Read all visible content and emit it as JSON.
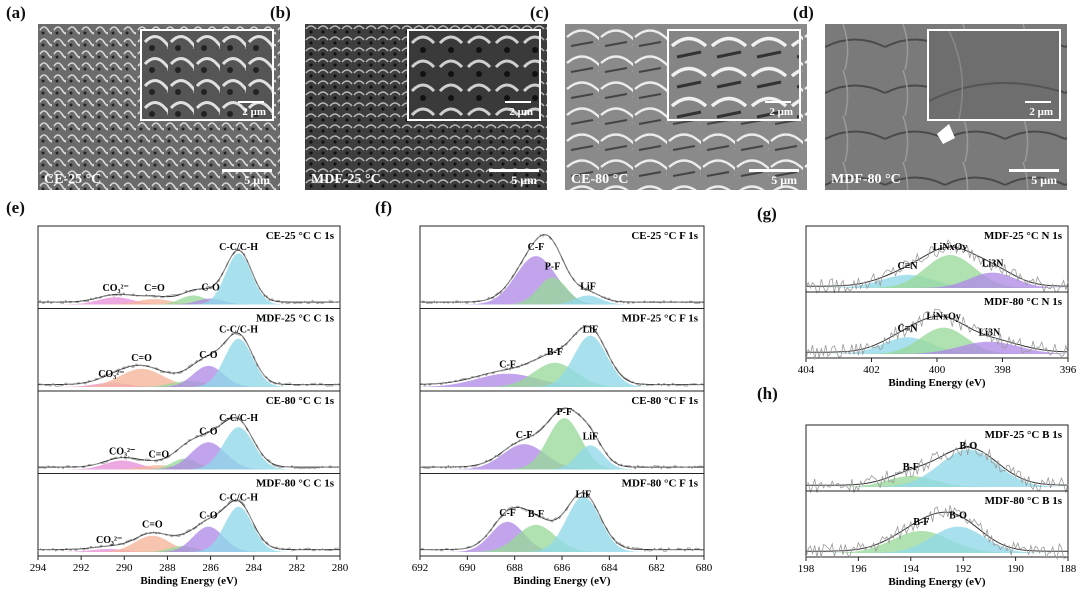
{
  "sem_panels": [
    {
      "label": "(a)",
      "condition": "CE-25 °C",
      "main_scale": "5 μm",
      "inset_scale": "2 μm",
      "tone": "#6b6b6b"
    },
    {
      "label": "(b)",
      "condition": "MDF-25 °C",
      "main_scale": "5 μm",
      "inset_scale": "2 μm",
      "tone": "#4a4a4a"
    },
    {
      "label": "(c)",
      "condition": "CE-80 °C",
      "main_scale": "5 μm",
      "inset_scale": "2 μm",
      "tone": "#8a8a8a"
    },
    {
      "label": "(d)",
      "condition": "MDF-80 °C",
      "main_scale": "5 μm",
      "inset_scale": "2 μm",
      "tone": "#7d7d7d"
    }
  ],
  "labels": {
    "e": "(e)",
    "f": "(f)",
    "g": "(g)",
    "h": "(h)"
  },
  "chart_data": [
    {
      "panel": "(e)",
      "type": "line",
      "xlabel": "Binding Energy (eV)",
      "xlim": [
        294,
        280
      ],
      "xticks": [
        294,
        292,
        290,
        288,
        286,
        284,
        282,
        280
      ],
      "subplots": [
        {
          "title": "CE-25 °C  C 1s",
          "components": [
            {
              "name": "CO₃²⁻",
              "center": 290.4,
              "height": 0.12,
              "width": 0.8,
              "color": "#e58fd8"
            },
            {
              "name": "C=O",
              "center": 288.6,
              "height": 0.09,
              "width": 0.8,
              "color": "#f5b39a"
            },
            {
              "name": "",
              "center": 286.8,
              "height": 0.15,
              "width": 0.6,
              "color": "#9ad99a"
            },
            {
              "name": "C-O",
              "center": 286.0,
              "height": 0.1,
              "width": 0.6,
              "color": "#b08be6"
            },
            {
              "name": "C-C/C-H",
              "center": 284.7,
              "height": 0.85,
              "width": 0.6,
              "color": "#8fd8e8"
            }
          ],
          "annotations": [
            "CO₃²⁻",
            "C=O",
            "C-O",
            "C-C/C-H"
          ]
        },
        {
          "title": "MDF-25 °C  C 1s",
          "components": [
            {
              "name": "CO₃²⁻",
              "center": 290.6,
              "height": 0.07,
              "width": 0.8,
              "color": "#e58fd8"
            },
            {
              "name": "C=O",
              "center": 289.2,
              "height": 0.3,
              "width": 1.0,
              "color": "#f5b39a"
            },
            {
              "name": "",
              "center": 287.0,
              "height": 0.1,
              "width": 0.8,
              "color": "#9ad99a"
            },
            {
              "name": "C-O",
              "center": 286.1,
              "height": 0.35,
              "width": 0.7,
              "color": "#b08be6"
            },
            {
              "name": "C-C/C-H",
              "center": 284.7,
              "height": 0.8,
              "width": 0.65,
              "color": "#8fd8e8"
            }
          ],
          "annotations": [
            "CO₃²⁻",
            "C=O",
            "C-O",
            "C-C/C-H"
          ]
        },
        {
          "title": "CE-80 °C  C 1s",
          "components": [
            {
              "name": "CO₃²⁻",
              "center": 290.1,
              "height": 0.15,
              "width": 0.8,
              "color": "#e58fd8"
            },
            {
              "name": "C=O",
              "center": 288.4,
              "height": 0.07,
              "width": 0.8,
              "color": "#f5b39a"
            },
            {
              "name": "",
              "center": 287.2,
              "height": 0.18,
              "width": 0.6,
              "color": "#9ad99a"
            },
            {
              "name": "C-O",
              "center": 286.1,
              "height": 0.45,
              "width": 0.8,
              "color": "#b08be6"
            },
            {
              "name": "C-C/C-H",
              "center": 284.7,
              "height": 0.7,
              "width": 0.7,
              "color": "#8fd8e8"
            }
          ],
          "annotations": [
            "CO₃²⁻",
            "C=O",
            "C-O",
            "C-C/C-H"
          ]
        },
        {
          "title": "MDF-80 °C  C 1s",
          "components": [
            {
              "name": "CO₃²⁻",
              "center": 290.7,
              "height": 0.05,
              "width": 0.8,
              "color": "#e58fd8"
            },
            {
              "name": "C=O",
              "center": 288.7,
              "height": 0.27,
              "width": 0.8,
              "color": "#f5b39a"
            },
            {
              "name": "",
              "center": 287.3,
              "height": 0.1,
              "width": 0.6,
              "color": "#9ad99a"
            },
            {
              "name": "C-O",
              "center": 286.1,
              "height": 0.42,
              "width": 0.7,
              "color": "#b08be6"
            },
            {
              "name": "C-C/C-H",
              "center": 284.7,
              "height": 0.75,
              "width": 0.65,
              "color": "#8fd8e8"
            }
          ],
          "annotations": [
            "CO₃²⁻",
            "C=O",
            "C-O",
            "C-C/C-H"
          ]
        }
      ]
    },
    {
      "panel": "(f)",
      "type": "line",
      "xlabel": "Binding Energy (eV)",
      "xlim": [
        692,
        680
      ],
      "xticks": [
        692,
        690,
        688,
        686,
        684,
        682,
        680
      ],
      "subplots": [
        {
          "title": "CE-25 °C  F 1s",
          "components": [
            {
              "name": "C-F",
              "center": 687.1,
              "height": 0.8,
              "width": 0.85,
              "color": "#b08be6"
            },
            {
              "name": "P-F",
              "center": 686.4,
              "height": 0.45,
              "width": 0.6,
              "color": "#9ad99a"
            },
            {
              "name": "LiF",
              "center": 684.9,
              "height": 0.15,
              "width": 0.55,
              "color": "#8fd8e8"
            }
          ],
          "annotations": [
            "C-F",
            "P-F",
            "LiF"
          ]
        },
        {
          "title": "MDF-25 °C  F 1s",
          "components": [
            {
              "name": "C-F",
              "center": 688.3,
              "height": 0.22,
              "width": 1.3,
              "color": "#b08be6"
            },
            {
              "name": "B-F",
              "center": 686.3,
              "height": 0.4,
              "width": 0.9,
              "color": "#9ad99a"
            },
            {
              "name": "LiF",
              "center": 684.8,
              "height": 0.85,
              "width": 0.7,
              "color": "#8fd8e8"
            }
          ],
          "annotations": [
            "C-F",
            "B-F",
            "LiF"
          ]
        },
        {
          "title": "CE-80 °C  F 1s",
          "components": [
            {
              "name": "C-F",
              "center": 687.6,
              "height": 0.42,
              "width": 0.9,
              "color": "#b08be6"
            },
            {
              "name": "P-F",
              "center": 685.9,
              "height": 0.85,
              "width": 0.7,
              "color": "#9ad99a"
            },
            {
              "name": "LiF",
              "center": 684.8,
              "height": 0.4,
              "width": 0.55,
              "color": "#8fd8e8"
            }
          ],
          "annotations": [
            "C-F",
            "P-F",
            "LiF"
          ]
        },
        {
          "title": "MDF-80 °C  F 1s",
          "components": [
            {
              "name": "C-F",
              "center": 688.3,
              "height": 0.5,
              "width": 0.7,
              "color": "#b08be6"
            },
            {
              "name": "B-F",
              "center": 687.1,
              "height": 0.45,
              "width": 0.8,
              "color": "#9ad99a"
            },
            {
              "name": "LiF",
              "center": 685.1,
              "height": 0.92,
              "width": 0.7,
              "color": "#8fd8e8"
            }
          ],
          "annotations": [
            "C-F",
            "B-F",
            "LiF"
          ]
        }
      ]
    },
    {
      "panel": "(g)",
      "type": "line",
      "xlabel": "Binding Energy (eV)",
      "xlim": [
        404,
        396
      ],
      "xticks": [
        404,
        402,
        400,
        398,
        396
      ],
      "subplots": [
        {
          "title": "MDF-25 °C  N 1s",
          "components": [
            {
              "name": "C≡N",
              "center": 400.9,
              "height": 0.3,
              "width": 0.8,
              "color": "#8fd8e8"
            },
            {
              "name": "LiNxOy",
              "center": 399.6,
              "height": 0.75,
              "width": 0.75,
              "color": "#9ad99a"
            },
            {
              "name": "Li3N",
              "center": 398.3,
              "height": 0.35,
              "width": 0.7,
              "color": "#b08be6"
            }
          ],
          "annotations": [
            "C≡N",
            "LiNxOy",
            "Li3N"
          ]
        },
        {
          "title": "MDF-80 °C  N 1s",
          "components": [
            {
              "name": "C≡N",
              "center": 400.9,
              "height": 0.38,
              "width": 0.75,
              "color": "#8fd8e8"
            },
            {
              "name": "LiNxOy",
              "center": 399.8,
              "height": 0.6,
              "width": 0.7,
              "color": "#9ad99a"
            },
            {
              "name": "Li3N",
              "center": 398.4,
              "height": 0.28,
              "width": 0.9,
              "color": "#b08be6"
            }
          ],
          "annotations": [
            "C≡N",
            "LiNxOy",
            "Li3N"
          ]
        }
      ]
    },
    {
      "panel": "(h)",
      "type": "line",
      "xlabel": "Binding Energy (eV)",
      "xlim": [
        198,
        188
      ],
      "xticks": [
        198,
        196,
        194,
        192,
        190,
        188
      ],
      "subplots": [
        {
          "title": "MDF-25 °C  B 1s",
          "components": [
            {
              "name": "B-F",
              "center": 194.0,
              "height": 0.25,
              "width": 0.9,
              "color": "#9ad99a"
            },
            {
              "name": "B-O",
              "center": 191.8,
              "height": 0.85,
              "width": 1.1,
              "color": "#8fd8e8"
            }
          ],
          "annotations": [
            "B-F",
            "B-O"
          ]
        },
        {
          "title": "MDF-80 °C  B 1s",
          "components": [
            {
              "name": "B-F",
              "center": 193.6,
              "height": 0.5,
              "width": 1.1,
              "color": "#9ad99a"
            },
            {
              "name": "B-O",
              "center": 192.2,
              "height": 0.6,
              "width": 1.0,
              "color": "#8fd8e8"
            }
          ],
          "annotations": [
            "B-F",
            "B-O"
          ]
        }
      ]
    }
  ]
}
